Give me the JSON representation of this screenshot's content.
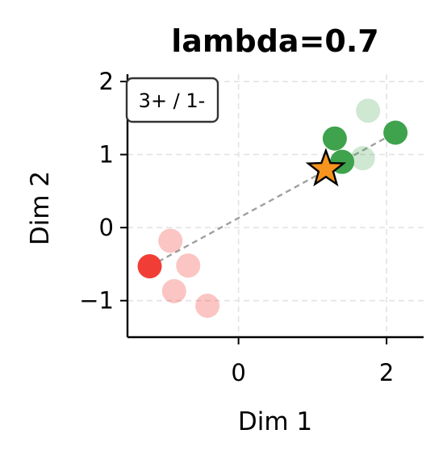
{
  "chart_data": {
    "type": "scatter",
    "title": "lambda=0.7",
    "xlabel": "Dim 1",
    "ylabel": "Dim 2",
    "xlim": [
      -1.5,
      2.5
    ],
    "ylim": [
      -1.5,
      2.1
    ],
    "xticks": [
      0,
      2
    ],
    "xtick_labels": [
      "0",
      "2"
    ],
    "yticks": [
      -1,
      0,
      1,
      2
    ],
    "ytick_labels": [
      "−1",
      "0",
      "1",
      "2"
    ],
    "grid": true,
    "annotation": "3+ / 1-",
    "annotation_position": "top-left",
    "series": [
      {
        "role": "positive-highlighted",
        "color": "#3fa34d",
        "opacity": 1.0,
        "points": [
          [
            1.3,
            1.22
          ],
          [
            1.4,
            0.9
          ],
          [
            2.12,
            1.3
          ]
        ]
      },
      {
        "role": "positive-faded",
        "color": "#3fa34d",
        "opacity": 0.25,
        "points": [
          [
            1.75,
            1.6
          ],
          [
            1.68,
            0.95
          ]
        ]
      },
      {
        "role": "negative-highlighted",
        "color": "#f03e36",
        "opacity": 1.0,
        "points": [
          [
            -1.2,
            -0.53
          ]
        ]
      },
      {
        "role": "negative-faded",
        "color": "#f03e36",
        "opacity": 0.3,
        "points": [
          [
            -0.92,
            -0.18
          ],
          [
            -0.68,
            -0.52
          ],
          [
            -0.87,
            -0.87
          ],
          [
            -0.42,
            -1.07
          ]
        ]
      }
    ],
    "star": {
      "x": 1.18,
      "y": 0.8,
      "color": "#f7941d"
    },
    "dashed_line": {
      "from": [
        -1.2,
        -0.53
      ],
      "to": [
        2.12,
        1.3
      ],
      "color": "#a0a0a0"
    }
  }
}
